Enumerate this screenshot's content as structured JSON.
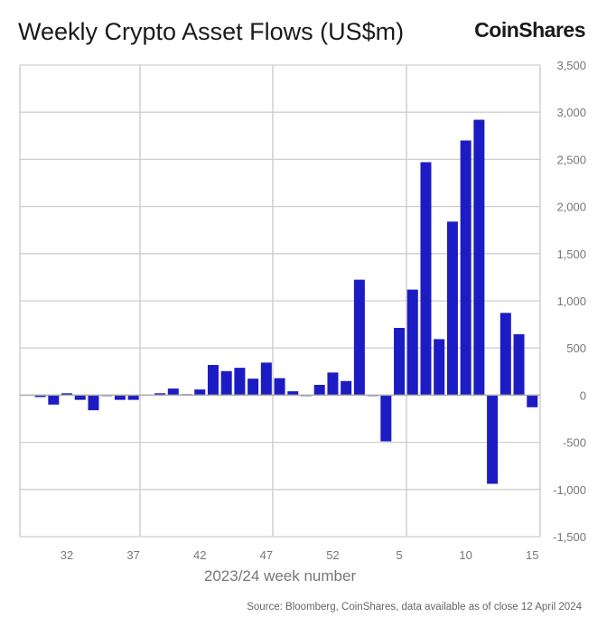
{
  "chart_data": {
    "type": "bar",
    "title": "Weekly Crypto Asset Flows (US$m)",
    "xlabel": "2023/24 week number",
    "ylabel": "",
    "ylim": [
      -1500,
      3500
    ],
    "yticks": [
      3500,
      3000,
      2500,
      2000,
      1500,
      1000,
      500,
      0,
      -500,
      -1000,
      -1500
    ],
    "ytick_labels": [
      "3,500",
      "3,000",
      "2,500",
      "2,000",
      "1,500",
      "1,000",
      "500",
      "0",
      "-500",
      "-1,000",
      "-1,500"
    ],
    "xtick_labels": [
      "32",
      "37",
      "42",
      "47",
      "52",
      "5",
      "10",
      "15"
    ],
    "grid": true,
    "color": "#1c1cc4",
    "categories": [
      "30",
      "31",
      "32",
      "33",
      "34",
      "35",
      "36",
      "37",
      "38",
      "39",
      "40",
      "41",
      "42",
      "43",
      "44",
      "45",
      "46",
      "47",
      "48",
      "49",
      "50",
      "51",
      "52",
      "1",
      "2",
      "3",
      "4",
      "5",
      "6",
      "7",
      "8",
      "9",
      "10",
      "11",
      "12",
      "13",
      "14",
      "15"
    ],
    "values": [
      -20,
      -100,
      20,
      -50,
      -160,
      0,
      -50,
      -50,
      5,
      20,
      70,
      10,
      60,
      320,
      255,
      290,
      175,
      345,
      180,
      41,
      -5,
      109,
      240,
      150,
      1224,
      -10,
      -490,
      713,
      1119,
      2470,
      594,
      1840,
      2700,
      2920,
      -940,
      872,
      646,
      -128
    ]
  },
  "brand": "CoinShares",
  "source": "Source: Bloomberg, CoinShares, data available as of close 12 April 2024"
}
